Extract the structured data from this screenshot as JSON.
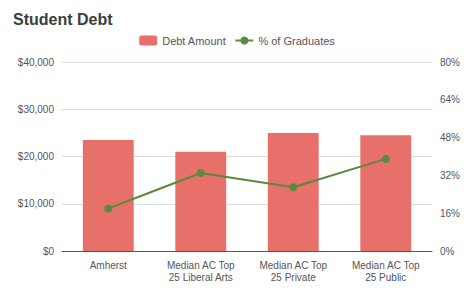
{
  "chart_data": {
    "type": "bar",
    "title": "Student Debt",
    "categories": [
      "Amherst",
      "Median AC Top\n25 Liberal Arts",
      "Median AC Top\n25 Private",
      "Median AC Top\n25 Public"
    ],
    "series": [
      {
        "name": "Debt Amount",
        "type": "bar",
        "color": "#e8706a",
        "values": [
          23500,
          21000,
          25000,
          24500
        ]
      },
      {
        "name": "% of Graduates",
        "type": "line",
        "color": "#5a8a3c",
        "marker": "circle",
        "axis": "y2",
        "values": [
          18,
          33,
          27,
          39
        ]
      }
    ],
    "ylim": [
      0,
      40000
    ],
    "yticks": [
      {
        "value": 0,
        "label": "$0"
      },
      {
        "value": 10000,
        "label": "$10,000"
      },
      {
        "value": 20000,
        "label": "$20,000"
      },
      {
        "value": 30000,
        "label": "$30,000"
      },
      {
        "value": 40000,
        "label": "$40,000"
      }
    ],
    "y2lim": [
      0,
      80
    ],
    "y2ticks": [
      {
        "value": 0,
        "label": "0%"
      },
      {
        "value": 16,
        "label": "16%"
      },
      {
        "value": 32,
        "label": "32%"
      },
      {
        "value": 48,
        "label": "48%"
      },
      {
        "value": 64,
        "label": "64%"
      },
      {
        "value": 80,
        "label": "80%"
      }
    ],
    "grid": true,
    "legend": "top"
  }
}
